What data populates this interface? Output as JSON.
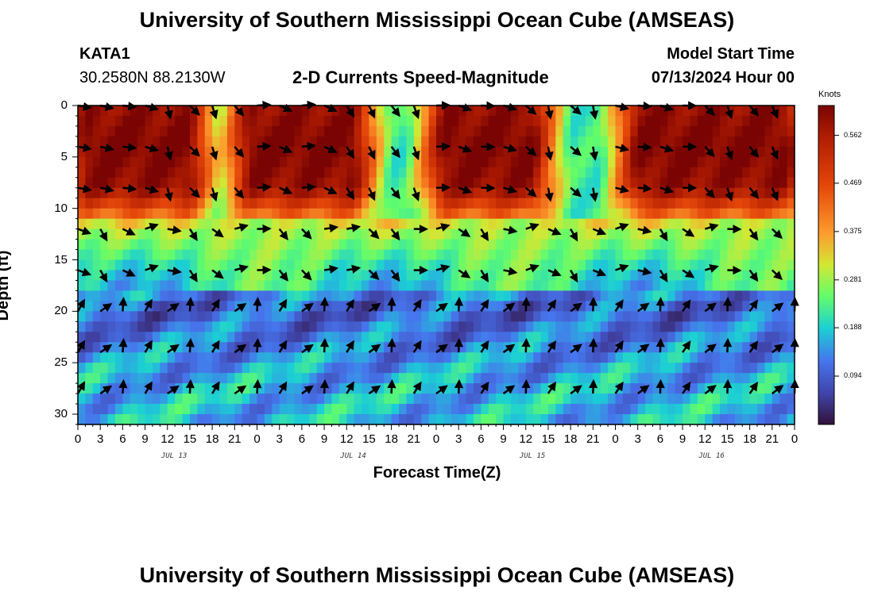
{
  "page": {
    "title": "University of Southern Mississippi Ocean Cube (AMSEAS)",
    "station": "KATA1",
    "coords": "30.2580N  88.2130W",
    "subtitle": "2-D Currents Speed-Magnitude",
    "model_start_label": "Model Start Time",
    "model_start_value": "07/13/2024 Hour 00",
    "footer_title": "University of Southern Mississippi Ocean Cube (AMSEAS)"
  },
  "chart_data": {
    "type": "heatmap",
    "xlabel": "Forecast Time(Z)",
    "ylabel": "Depth (ft)",
    "xlim": [
      0,
      96
    ],
    "ylim": [
      0,
      31
    ],
    "y_inverted": true,
    "x_tick_labels": [
      "0",
      "3",
      "6",
      "9",
      "12",
      "15",
      "18",
      "21",
      "0",
      "3",
      "6",
      "9",
      "12",
      "15",
      "18",
      "21",
      "0",
      "3",
      "6",
      "9",
      "12",
      "15",
      "18",
      "21",
      "0",
      "3",
      "6",
      "9",
      "12",
      "15",
      "18",
      "21",
      "0"
    ],
    "day_labels": [
      "JUL 13",
      "JUL 14",
      "JUL 15",
      "JUL 16"
    ],
    "y_ticks": [
      0,
      5,
      10,
      15,
      20,
      25,
      30
    ],
    "colorbar": {
      "unit": "Knots",
      "min": 0.0,
      "max": 0.62,
      "ticks": [
        "0.094",
        "0.188",
        "0.281",
        "0.375",
        "0.469",
        "0.562"
      ],
      "tick_values": [
        0.094,
        0.188,
        0.281,
        0.375,
        0.469,
        0.562
      ]
    },
    "depth_levels_ft": [
      0,
      4,
      8,
      12,
      16,
      20,
      24,
      28
    ],
    "speed_profile_surface_to_bottom": [
      0.55,
      0.58,
      0.55,
      0.3,
      0.18,
      0.1,
      0.14,
      0.17
    ],
    "high_speed_periods_hours": [
      [
        0,
        16
      ],
      [
        22,
        38
      ],
      [
        48,
        62
      ],
      [
        74,
        96
      ]
    ],
    "vectors": "current direction arrows at 3-hourly steps for each depth level"
  }
}
